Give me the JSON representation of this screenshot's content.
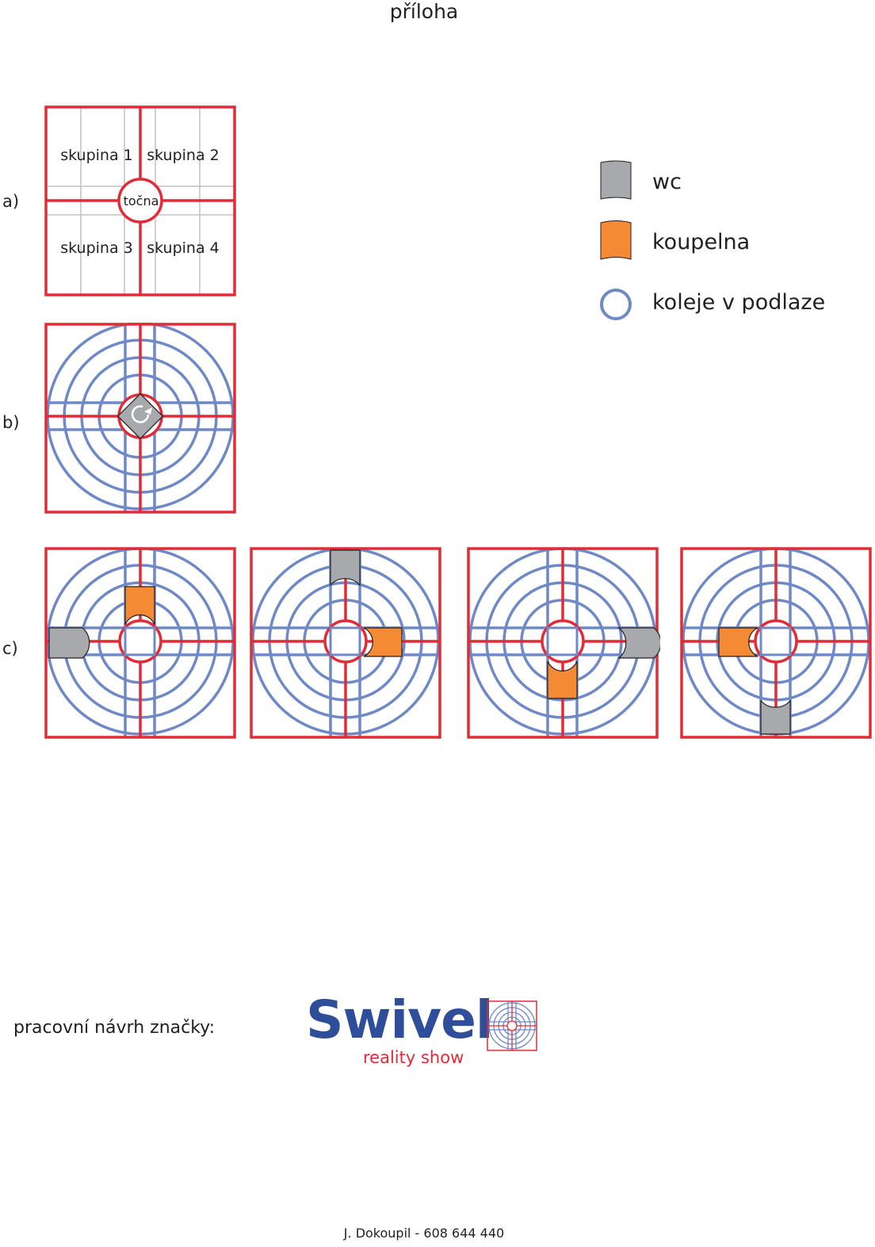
{
  "title": "příloha",
  "rows": {
    "a": "a)",
    "b": "b)",
    "c": "c)"
  },
  "groups": [
    "skupina 1",
    "skupina 2",
    "skupina 3",
    "skupina 4"
  ],
  "turntable_label": "točna",
  "legend": [
    {
      "icon": "wc-icon",
      "label": "wc",
      "color": "#a7a9ac"
    },
    {
      "icon": "bathroom-icon",
      "label": "koupelna",
      "color": "#f58a34"
    },
    {
      "icon": "ring-icon",
      "label": "koleje v podlaze",
      "color": "#6f89c6"
    }
  ],
  "colors": {
    "frame": "#e12b36",
    "rail": "#6f89c6",
    "wc": "#a7a9ac",
    "bathroom": "#f58a34"
  },
  "footer_label": "pracovní návrh značky:",
  "logo": {
    "word": "Swivel",
    "tagline": "reality show"
  },
  "contact": "J. Dokoupil - 608 644 440"
}
